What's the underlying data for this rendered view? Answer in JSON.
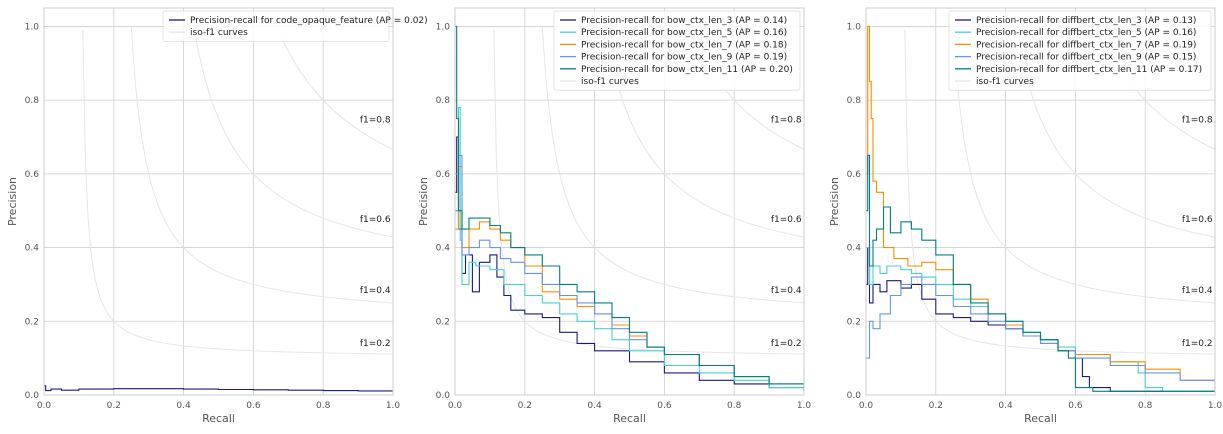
{
  "chart_data": [
    {
      "type": "line",
      "xlabel": "Recall",
      "ylabel": "Precision",
      "xlim": [
        0.0,
        1.0
      ],
      "ylim": [
        0.0,
        1.05
      ],
      "xticks": [
        "0.0",
        "0.2",
        "0.4",
        "0.6",
        "0.8",
        "1.0"
      ],
      "yticks": [
        "0.0",
        "0.2",
        "0.4",
        "0.6",
        "0.8",
        "1.0"
      ],
      "grid": true,
      "legend_position": "top-right",
      "iso_f1_labels": [
        "f1=0.2",
        "f1=0.4",
        "f1=0.6",
        "f1=0.8"
      ],
      "iso_label": "iso-f1 curves",
      "iso_color": "#e6e6e6",
      "series": [
        {
          "name": "Precision-recall for code_opaque_feature (AP = 0.02)",
          "color": "#1a1a80",
          "points": [
            [
              0.0,
              0.025
            ],
            [
              0.005,
              0.012
            ],
            [
              0.02,
              0.016
            ],
            [
              0.05,
              0.013
            ],
            [
              0.1,
              0.016
            ],
            [
              0.2,
              0.017
            ],
            [
              0.3,
              0.017
            ],
            [
              0.4,
              0.016
            ],
            [
              0.5,
              0.015
            ],
            [
              0.6,
              0.014
            ],
            [
              0.7,
              0.013
            ],
            [
              0.8,
              0.012
            ],
            [
              0.9,
              0.011
            ],
            [
              1.0,
              0.01
            ]
          ]
        }
      ]
    },
    {
      "type": "line",
      "xlabel": "Recall",
      "ylabel": "Precision",
      "xlim": [
        0.0,
        1.0
      ],
      "ylim": [
        0.0,
        1.05
      ],
      "xticks": [
        "0.0",
        "0.2",
        "0.4",
        "0.6",
        "0.8",
        "1.0"
      ],
      "yticks": [
        "0.0",
        "0.2",
        "0.4",
        "0.6",
        "0.8",
        "1.0"
      ],
      "grid": true,
      "legend_position": "top-right",
      "iso_f1_labels": [
        "f1=0.2",
        "f1=0.4",
        "f1=0.6",
        "f1=0.8"
      ],
      "iso_label": "iso-f1 curves",
      "iso_color": "#e6e6e6",
      "series": [
        {
          "name": "Precision-recall for bow_ctx_len_3 (AP = 0.14)",
          "color": "#1a1a80",
          "points": [
            [
              0.0,
              0.55
            ],
            [
              0.005,
              0.7
            ],
            [
              0.01,
              0.45
            ],
            [
              0.02,
              0.33
            ],
            [
              0.03,
              0.38
            ],
            [
              0.05,
              0.28
            ],
            [
              0.07,
              0.36
            ],
            [
              0.1,
              0.38
            ],
            [
              0.12,
              0.32
            ],
            [
              0.14,
              0.27
            ],
            [
              0.16,
              0.23
            ],
            [
              0.2,
              0.22
            ],
            [
              0.25,
              0.21
            ],
            [
              0.3,
              0.17
            ],
            [
              0.35,
              0.14
            ],
            [
              0.4,
              0.12
            ],
            [
              0.5,
              0.09
            ],
            [
              0.6,
              0.06
            ],
            [
              0.7,
              0.04
            ],
            [
              0.8,
              0.03
            ],
            [
              0.9,
              0.02
            ],
            [
              1.0,
              0.01
            ]
          ]
        },
        {
          "name": "Precision-recall for bow_ctx_len_5 (AP = 0.16)",
          "color": "#48d1cc",
          "points": [
            [
              0.0,
              0.6
            ],
            [
              0.01,
              0.78
            ],
            [
              0.015,
              0.42
            ],
            [
              0.02,
              0.3
            ],
            [
              0.04,
              0.36
            ],
            [
              0.06,
              0.35
            ],
            [
              0.1,
              0.34
            ],
            [
              0.14,
              0.3
            ],
            [
              0.2,
              0.27
            ],
            [
              0.25,
              0.25
            ],
            [
              0.3,
              0.22
            ],
            [
              0.35,
              0.2
            ],
            [
              0.4,
              0.18
            ],
            [
              0.45,
              0.15
            ],
            [
              0.5,
              0.12
            ],
            [
              0.6,
              0.08
            ],
            [
              0.7,
              0.06
            ],
            [
              0.8,
              0.04
            ],
            [
              0.9,
              0.02
            ],
            [
              1.0,
              0.01
            ]
          ]
        },
        {
          "name": "Precision-recall for bow_ctx_len_7 (AP = 0.18)",
          "color": "#ff8c00",
          "points": [
            [
              0.0,
              0.45
            ],
            [
              0.01,
              0.62
            ],
            [
              0.02,
              0.4
            ],
            [
              0.04,
              0.45
            ],
            [
              0.07,
              0.47
            ],
            [
              0.1,
              0.45
            ],
            [
              0.13,
              0.42
            ],
            [
              0.16,
              0.4
            ],
            [
              0.2,
              0.35
            ],
            [
              0.25,
              0.28
            ],
            [
              0.3,
              0.26
            ],
            [
              0.35,
              0.24
            ],
            [
              0.4,
              0.22
            ],
            [
              0.45,
              0.19
            ],
            [
              0.5,
              0.16
            ],
            [
              0.55,
              0.13
            ],
            [
              0.6,
              0.11
            ],
            [
              0.7,
              0.08
            ],
            [
              0.8,
              0.05
            ],
            [
              0.9,
              0.03
            ],
            [
              1.0,
              0.01
            ]
          ]
        },
        {
          "name": "Precision-recall for bow_ctx_len_9 (AP = 0.19)",
          "color": "#6495ed",
          "points": [
            [
              0.0,
              0.5
            ],
            [
              0.01,
              0.65
            ],
            [
              0.02,
              0.38
            ],
            [
              0.04,
              0.4
            ],
            [
              0.07,
              0.42
            ],
            [
              0.1,
              0.4
            ],
            [
              0.13,
              0.37
            ],
            [
              0.16,
              0.36
            ],
            [
              0.2,
              0.33
            ],
            [
              0.25,
              0.3
            ],
            [
              0.3,
              0.27
            ],
            [
              0.35,
              0.25
            ],
            [
              0.4,
              0.22
            ],
            [
              0.45,
              0.18
            ],
            [
              0.5,
              0.15
            ],
            [
              0.55,
              0.13
            ],
            [
              0.6,
              0.11
            ],
            [
              0.7,
              0.08
            ],
            [
              0.8,
              0.05
            ],
            [
              0.9,
              0.03
            ],
            [
              1.0,
              0.01
            ]
          ]
        },
        {
          "name": "Precision-recall for bow_ctx_len_11 (AP = 0.20)",
          "color": "#008080",
          "points": [
            [
              0.0,
              1.0
            ],
            [
              0.005,
              0.75
            ],
            [
              0.01,
              0.5
            ],
            [
              0.02,
              0.45
            ],
            [
              0.04,
              0.48
            ],
            [
              0.07,
              0.48
            ],
            [
              0.1,
              0.46
            ],
            [
              0.13,
              0.44
            ],
            [
              0.16,
              0.4
            ],
            [
              0.2,
              0.38
            ],
            [
              0.25,
              0.35
            ],
            [
              0.3,
              0.3
            ],
            [
              0.35,
              0.28
            ],
            [
              0.4,
              0.25
            ],
            [
              0.45,
              0.21
            ],
            [
              0.5,
              0.17
            ],
            [
              0.55,
              0.13
            ],
            [
              0.6,
              0.11
            ],
            [
              0.7,
              0.08
            ],
            [
              0.8,
              0.05
            ],
            [
              0.9,
              0.03
            ],
            [
              1.0,
              0.01
            ]
          ]
        }
      ]
    },
    {
      "type": "line",
      "xlabel": "Recall",
      "ylabel": "Precision",
      "xlim": [
        0.0,
        1.0
      ],
      "ylim": [
        0.0,
        1.05
      ],
      "xticks": [
        "0.0",
        "0.2",
        "0.4",
        "0.6",
        "0.8",
        "1.0"
      ],
      "yticks": [
        "0.0",
        "0.2",
        "0.4",
        "0.6",
        "0.8",
        "1.0"
      ],
      "grid": true,
      "legend_position": "top-right",
      "iso_f1_labels": [
        "f1=0.2",
        "f1=0.4",
        "f1=0.6",
        "f1=0.8"
      ],
      "iso_label": "iso-f1 curves",
      "iso_color": "#e6e6e6",
      "series": [
        {
          "name": "Precision-recall for diffbert_ctx_len_3 (AP = 0.13)",
          "color": "#1a1a80",
          "points": [
            [
              0.0,
              0.3
            ],
            [
              0.005,
              0.4
            ],
            [
              0.01,
              0.25
            ],
            [
              0.02,
              0.3
            ],
            [
              0.04,
              0.28
            ],
            [
              0.06,
              0.31
            ],
            [
              0.1,
              0.29
            ],
            [
              0.13,
              0.3
            ],
            [
              0.16,
              0.26
            ],
            [
              0.2,
              0.22
            ],
            [
              0.25,
              0.21
            ],
            [
              0.3,
              0.2
            ],
            [
              0.35,
              0.19
            ],
            [
              0.4,
              0.18
            ],
            [
              0.45,
              0.16
            ],
            [
              0.5,
              0.15
            ],
            [
              0.55,
              0.12
            ],
            [
              0.6,
              0.1
            ],
            [
              0.62,
              0.05
            ],
            [
              0.64,
              0.02
            ],
            [
              0.7,
              0.01
            ],
            [
              1.0,
              0.01
            ]
          ]
        },
        {
          "name": "Precision-recall for diffbert_ctx_len_5 (AP = 0.16)",
          "color": "#48d1cc",
          "points": [
            [
              0.0,
              0.4
            ],
            [
              0.01,
              0.3
            ],
            [
              0.02,
              0.35
            ],
            [
              0.04,
              0.33
            ],
            [
              0.06,
              0.35
            ],
            [
              0.1,
              0.34
            ],
            [
              0.13,
              0.33
            ],
            [
              0.16,
              0.32
            ],
            [
              0.2,
              0.3
            ],
            [
              0.25,
              0.26
            ],
            [
              0.3,
              0.24
            ],
            [
              0.35,
              0.22
            ],
            [
              0.4,
              0.2
            ],
            [
              0.45,
              0.17
            ],
            [
              0.5,
              0.15
            ],
            [
              0.55,
              0.13
            ],
            [
              0.6,
              0.11
            ],
            [
              0.7,
              0.09
            ],
            [
              0.78,
              0.06
            ],
            [
              0.8,
              0.02
            ],
            [
              0.85,
              0.01
            ],
            [
              1.0,
              0.01
            ]
          ]
        },
        {
          "name": "Precision-recall for diffbert_ctx_len_7 (AP = 0.19)",
          "color": "#ff8c00",
          "points": [
            [
              0.0,
              0.6
            ],
            [
              0.005,
              1.0
            ],
            [
              0.01,
              0.85
            ],
            [
              0.015,
              0.75
            ],
            [
              0.02,
              0.58
            ],
            [
              0.03,
              0.55
            ],
            [
              0.05,
              0.4
            ],
            [
              0.08,
              0.37
            ],
            [
              0.12,
              0.35
            ],
            [
              0.16,
              0.36
            ],
            [
              0.2,
              0.34
            ],
            [
              0.25,
              0.3
            ],
            [
              0.3,
              0.26
            ],
            [
              0.35,
              0.22
            ],
            [
              0.4,
              0.19
            ],
            [
              0.45,
              0.16
            ],
            [
              0.5,
              0.14
            ],
            [
              0.55,
              0.12
            ],
            [
              0.6,
              0.11
            ],
            [
              0.7,
              0.09
            ],
            [
              0.8,
              0.07
            ],
            [
              0.9,
              0.04
            ],
            [
              1.0,
              0.01
            ]
          ]
        },
        {
          "name": "Precision-recall for diffbert_ctx_len_9 (AP = 0.15)",
          "color": "#6495ed",
          "points": [
            [
              0.0,
              0.1
            ],
            [
              0.01,
              0.2
            ],
            [
              0.02,
              0.18
            ],
            [
              0.04,
              0.22
            ],
            [
              0.07,
              0.27
            ],
            [
              0.1,
              0.3
            ],
            [
              0.13,
              0.32
            ],
            [
              0.16,
              0.3
            ],
            [
              0.2,
              0.27
            ],
            [
              0.25,
              0.24
            ],
            [
              0.3,
              0.22
            ],
            [
              0.35,
              0.2
            ],
            [
              0.4,
              0.18
            ],
            [
              0.45,
              0.16
            ],
            [
              0.5,
              0.14
            ],
            [
              0.55,
              0.12
            ],
            [
              0.6,
              0.1
            ],
            [
              0.7,
              0.08
            ],
            [
              0.8,
              0.06
            ],
            [
              0.9,
              0.04
            ],
            [
              1.0,
              0.01
            ]
          ]
        },
        {
          "name": "Precision-recall for diffbert_ctx_len_11 (AP = 0.17)",
          "color": "#008080",
          "points": [
            [
              0.0,
              0.5
            ],
            [
              0.005,
              0.65
            ],
            [
              0.01,
              0.35
            ],
            [
              0.02,
              0.42
            ],
            [
              0.03,
              0.45
            ],
            [
              0.05,
              0.51
            ],
            [
              0.07,
              0.44
            ],
            [
              0.1,
              0.47
            ],
            [
              0.13,
              0.45
            ],
            [
              0.16,
              0.42
            ],
            [
              0.2,
              0.38
            ],
            [
              0.25,
              0.3
            ],
            [
              0.3,
              0.25
            ],
            [
              0.35,
              0.22
            ],
            [
              0.4,
              0.2
            ],
            [
              0.45,
              0.17
            ],
            [
              0.5,
              0.15
            ],
            [
              0.55,
              0.12
            ],
            [
              0.58,
              0.1
            ],
            [
              0.6,
              0.02
            ],
            [
              0.65,
              0.01
            ],
            [
              1.0,
              0.01
            ]
          ]
        }
      ]
    }
  ]
}
